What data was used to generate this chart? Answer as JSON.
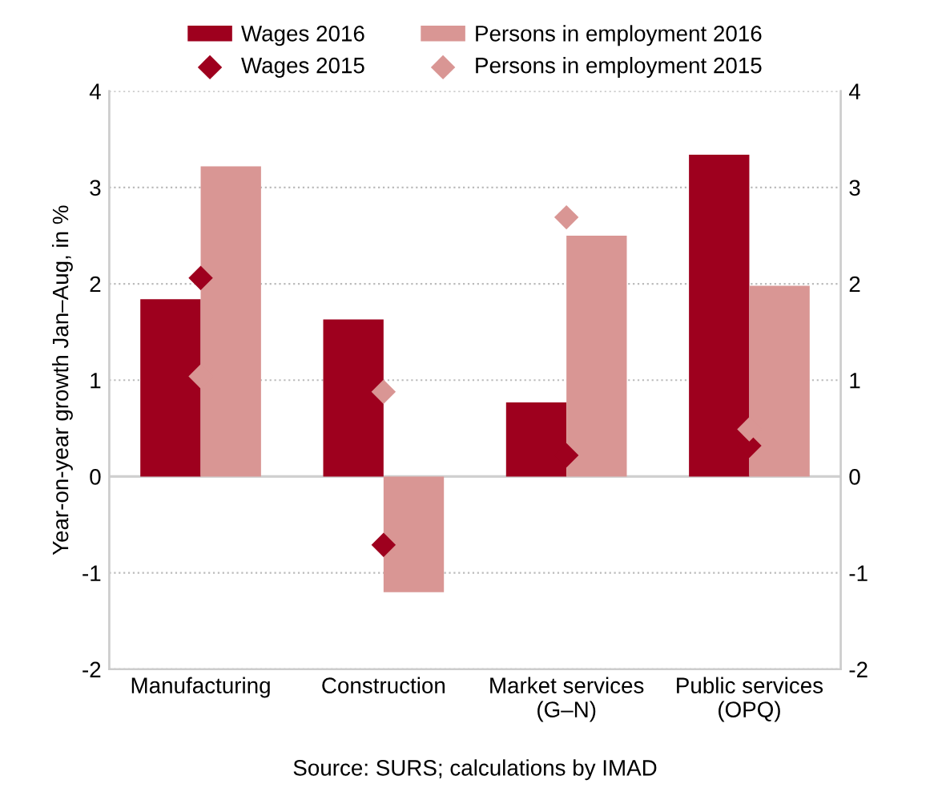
{
  "chart_data": {
    "type": "bar",
    "ylabel": "Year-on-year growth Jan–Aug, in %",
    "categories": [
      "Manufacturing",
      "Construction",
      "Market services\n(G–N)",
      "Public services\n(OPQ)"
    ],
    "series": [
      {
        "name": "Wages 2016",
        "color": "#9e001e",
        "values": [
          1.84,
          1.63,
          0.77,
          3.34
        ]
      },
      {
        "name": "Persons in employment 2016",
        "color": "#d99694",
        "values": [
          3.22,
          -1.2,
          2.5,
          1.98
        ]
      },
      {
        "name": "Wages 2015",
        "type": "scatter",
        "color": "#9e001e",
        "marker": "diamond",
        "values": [
          2.06,
          -0.71,
          0.22,
          0.32
        ]
      },
      {
        "name": "Persons in employment 2015",
        "type": "scatter",
        "color": "#d99694",
        "marker": "diamond",
        "values": [
          1.04,
          0.88,
          2.69,
          0.49
        ]
      }
    ],
    "ylim": [
      -2,
      4
    ],
    "yticks": [
      -2,
      -1,
      0,
      1,
      2,
      3,
      4
    ],
    "y2lim": [
      -2,
      4
    ],
    "y2ticks": [
      -2,
      -1,
      0,
      1,
      2,
      3,
      4
    ],
    "grid": "y",
    "legend": "top",
    "annotations": [
      "Source: SURS; calculations by IMAD"
    ]
  }
}
